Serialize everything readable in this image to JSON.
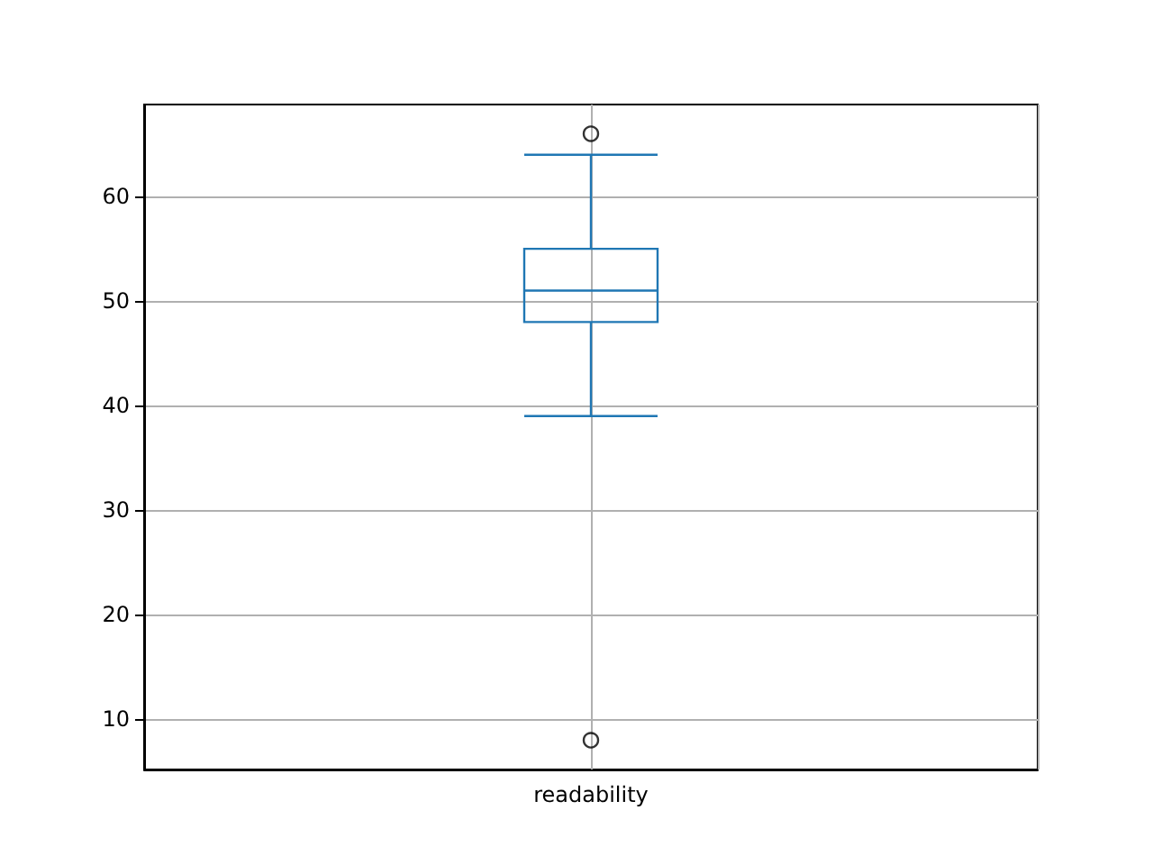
{
  "chart_data": {
    "type": "box",
    "categories": [
      "readability"
    ],
    "series": [
      {
        "color": "#1f77b4",
        "boxes": [
          {
            "low": 39,
            "q1": 48,
            "median": 51,
            "q3": 55,
            "high": 64,
            "outliers": [
              66,
              8
            ]
          }
        ]
      }
    ],
    "ylim": [
      5.2,
      68.8
    ],
    "yticks": [
      10,
      20,
      30,
      40,
      50,
      60
    ],
    "grid": true
  }
}
